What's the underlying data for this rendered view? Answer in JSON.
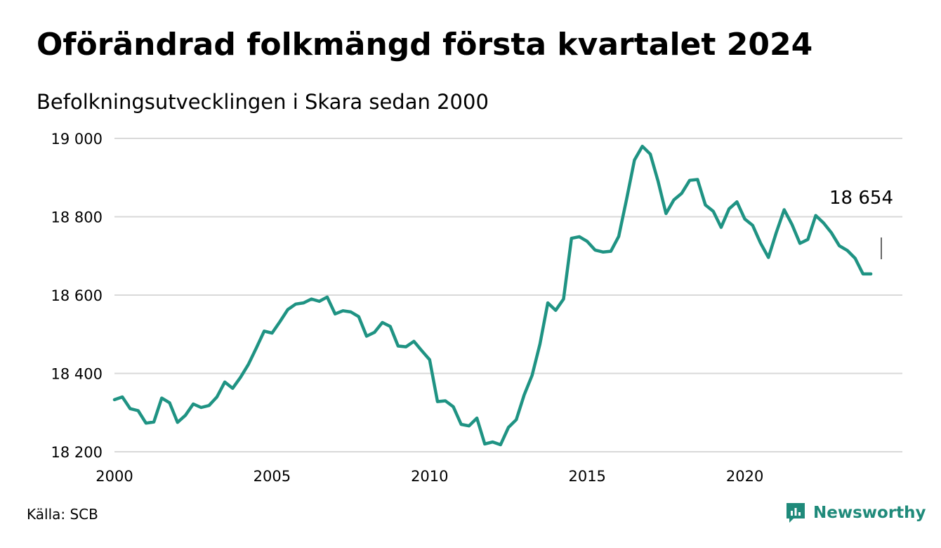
{
  "header": {
    "title": "Oförändrad folkmängd första kvartalet 2024",
    "subtitle": "Befolkningsutvecklingen i Skara sedan 2000"
  },
  "footer": {
    "source": "Källa: SCB",
    "brand": "Newsworthy",
    "brand_icon": "newsworthy-logo-icon"
  },
  "colors": {
    "line": "#1f9383",
    "grid": "#d9d9d9",
    "brand": "#1f8a7a"
  },
  "chart_data": {
    "type": "line",
    "title": "Oförändrad folkmängd första kvartalet 2024",
    "subtitle": "Befolkningsutvecklingen i Skara sedan 2000",
    "xlabel": "",
    "ylabel": "",
    "x_ticks": [
      "2000",
      "2005",
      "2010",
      "2015",
      "2020"
    ],
    "y_ticks": [
      {
        "value": 18200,
        "label": "18 200"
      },
      {
        "value": 18400,
        "label": "18 400"
      },
      {
        "value": 18600,
        "label": "18 600"
      },
      {
        "value": 18800,
        "label": "18 800"
      },
      {
        "value": 19000,
        "label": "19 000"
      }
    ],
    "xlim": [
      2000,
      2025
    ],
    "ylim": [
      18200,
      19000
    ],
    "grid": true,
    "annotation": {
      "x": 2024.0,
      "y": 18654,
      "label": "18 654"
    },
    "series": [
      {
        "x": [
          2000.0,
          2000.25,
          2000.5,
          2000.75,
          2001.0,
          2001.25,
          2001.5,
          2001.75,
          2002.0,
          2002.25,
          2002.5,
          2002.75,
          2003.0,
          2003.25,
          2003.5,
          2003.75,
          2004.0,
          2004.25,
          2004.5,
          2004.75,
          2005.0,
          2005.25,
          2005.5,
          2005.75,
          2006.0,
          2006.25,
          2006.5,
          2006.75,
          2007.0,
          2007.25,
          2007.5,
          2007.75,
          2008.0,
          2008.25,
          2008.5,
          2008.75,
          2009.0,
          2009.25,
          2009.5,
          2009.75,
          2010.0,
          2010.25,
          2010.5,
          2010.75,
          2011.0,
          2011.25,
          2011.5,
          2011.75,
          2012.0,
          2012.25,
          2012.5,
          2012.75,
          2013.0,
          2013.25,
          2013.5,
          2013.75,
          2014.0,
          2014.25,
          2014.5,
          2014.75,
          2015.0,
          2015.25,
          2015.5,
          2015.75,
          2016.0,
          2016.25,
          2016.5,
          2016.75,
          2017.0,
          2017.25,
          2017.5,
          2017.75,
          2018.0,
          2018.25,
          2018.5,
          2018.75,
          2019.0,
          2019.25,
          2019.5,
          2019.75,
          2020.0,
          2020.25,
          2020.5,
          2020.75,
          2021.0,
          2021.25,
          2021.5,
          2021.75,
          2022.0,
          2022.25,
          2022.5,
          2022.75,
          2023.0,
          2023.25,
          2023.5,
          2023.75,
          2024.0
        ],
        "y": [
          18333,
          18340,
          18310,
          18305,
          18273,
          18276,
          18337,
          18325,
          18275,
          18293,
          18322,
          18313,
          18318,
          18340,
          18378,
          18362,
          18390,
          18423,
          18465,
          18508,
          18503,
          18532,
          18563,
          18577,
          18580,
          18590,
          18584,
          18595,
          18552,
          18560,
          18557,
          18545,
          18495,
          18505,
          18530,
          18520,
          18470,
          18468,
          18482,
          18458,
          18435,
          18328,
          18330,
          18315,
          18270,
          18266,
          18286,
          18220,
          18225,
          18218,
          18262,
          18282,
          18345,
          18395,
          18475,
          18580,
          18561,
          18590,
          18745,
          18749,
          18737,
          18715,
          18710,
          18712,
          18750,
          18845,
          18945,
          18980,
          18960,
          18890,
          18808,
          18843,
          18860,
          18893,
          18895,
          18830,
          18814,
          18773,
          18820,
          18838,
          18794,
          18778,
          18733,
          18696,
          18760,
          18818,
          18780,
          18732,
          18742,
          18803,
          18784,
          18759,
          18726,
          18714,
          18694,
          18654,
          18654
        ]
      }
    ]
  }
}
